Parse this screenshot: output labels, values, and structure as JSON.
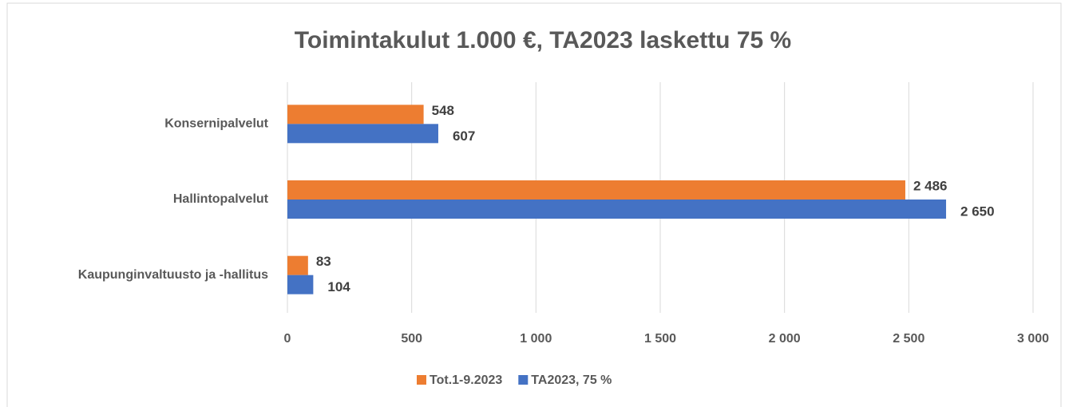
{
  "chart_data": {
    "type": "hbar",
    "title": "Toimintakulut 1.000 €, TA2023 laskettu 75 %",
    "categories": [
      "Konsernipalvelut",
      "Hallintopalvelut",
      "Kaupunginvaltuusto ja -hallitus"
    ],
    "series": [
      {
        "name": "Tot.1-9.2023",
        "color": "#ed7d31",
        "values": [
          548,
          2486,
          83
        ],
        "value_labels": [
          "548",
          "2 486",
          "83"
        ]
      },
      {
        "name": "TA2023, 75 %",
        "color": "#4472c4",
        "values": [
          607,
          2650,
          104
        ],
        "value_labels": [
          "607",
          "2 650",
          "104"
        ]
      }
    ],
    "xlim": [
      0,
      3000
    ],
    "xticks": [
      0,
      500,
      {
        "value": 1000,
        "label": "1 000"
      },
      {
        "value": 1500,
        "label": "1 500"
      },
      {
        "value": 2000,
        "label": "2 000"
      },
      {
        "value": 2500,
        "label": "2 500"
      },
      {
        "value": 3000,
        "label": "3 000"
      }
    ],
    "grid": true,
    "legend": "bottom"
  }
}
